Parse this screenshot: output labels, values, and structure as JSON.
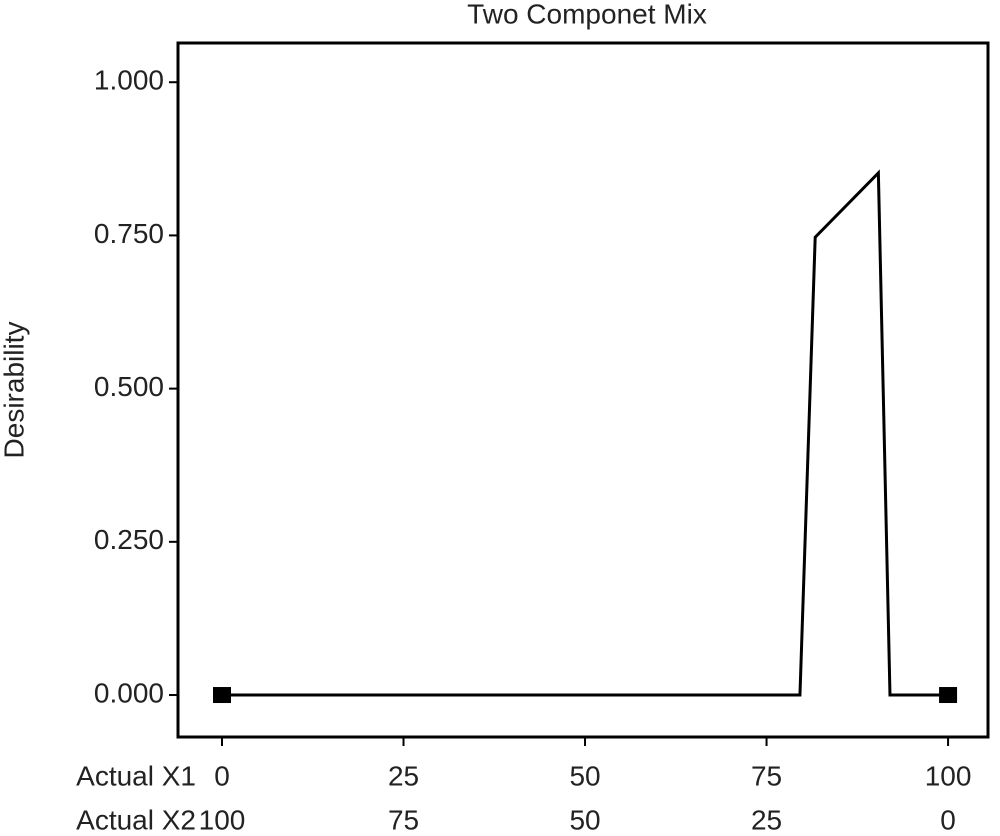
{
  "chart_data": {
    "type": "line",
    "title": "Two Componet Mix",
    "y_label": "Desirability",
    "x_label": "Actual X1",
    "x2_label": "Actual X2",
    "x": [
      0,
      79.6,
      81.7,
      90.4,
      92.0,
      100
    ],
    "values": [
      0,
      0,
      0.747,
      0.852,
      0,
      0
    ],
    "color": "#000000",
    "design_points": {
      "x": [
        0,
        100
      ],
      "values": [
        0,
        0
      ]
    },
    "xlim": [
      -6.06,
      105.5
    ],
    "x2lim": [
      106.06,
      -5.5
    ],
    "ylim": [
      -0.0685,
      1.064
    ],
    "xticks": [
      0,
      25,
      50,
      75,
      100
    ],
    "x2ticks": [
      100,
      75,
      50,
      25,
      0
    ],
    "yticks": [
      {
        "value": 0,
        "label": "0.000"
      },
      {
        "value": 0.25,
        "label": "0.250"
      },
      {
        "value": 0.5,
        "label": "0.500"
      },
      {
        "value": 0.75,
        "label": "0.750"
      },
      {
        "value": 1,
        "label": "1.000"
      }
    ]
  }
}
